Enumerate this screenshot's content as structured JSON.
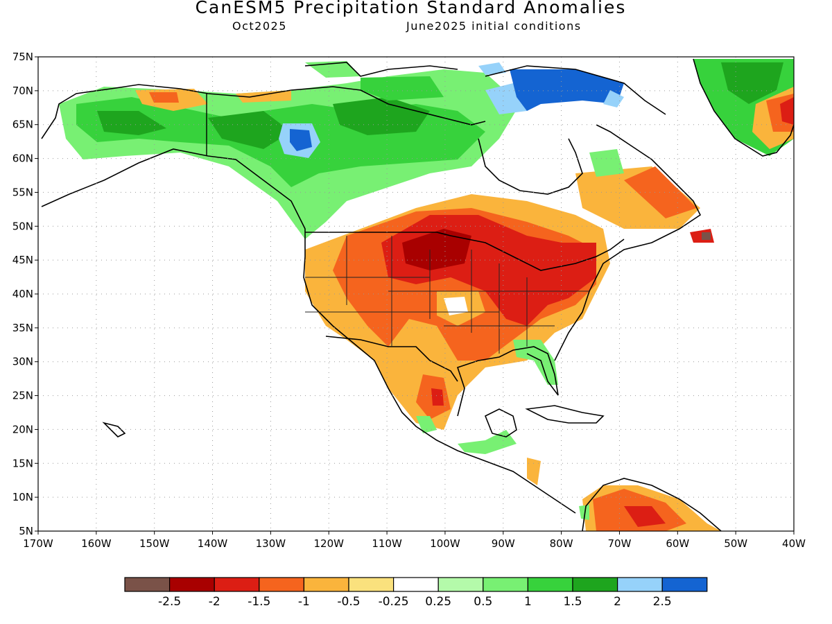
{
  "title": "CanESM5 Precipitation Standard Anomalies",
  "subtitle_left": "Oct2025",
  "subtitle_right": "June2025 initial conditions",
  "lat_labels": [
    "75N",
    "70N",
    "65N",
    "60N",
    "55N",
    "50N",
    "45N",
    "40N",
    "35N",
    "30N",
    "25N",
    "20N",
    "15N",
    "10N",
    "5N"
  ],
  "lon_labels": [
    "170W",
    "160W",
    "150W",
    "140W",
    "130W",
    "120W",
    "110W",
    "100W",
    "90W",
    "80W",
    "70W",
    "60W",
    "50W",
    "40W"
  ],
  "legend": {
    "colors": [
      "#7a5248",
      "#a80000",
      "#dc1e14",
      "#f5641e",
      "#fab43c",
      "#fae17d",
      "#ffffff",
      "#b4faaa",
      "#78f073",
      "#37d23c",
      "#1ea51e",
      "#96d2fa",
      "#1464d2"
    ],
    "labels": [
      "-2.5",
      "-2",
      "-1.5",
      "-1",
      "-0.5",
      "-0.25",
      "0.25",
      "0.5",
      "1",
      "1.5",
      "2",
      "2.5"
    ]
  },
  "colors": {
    "coast": "#000000",
    "grid": "#999999"
  }
}
